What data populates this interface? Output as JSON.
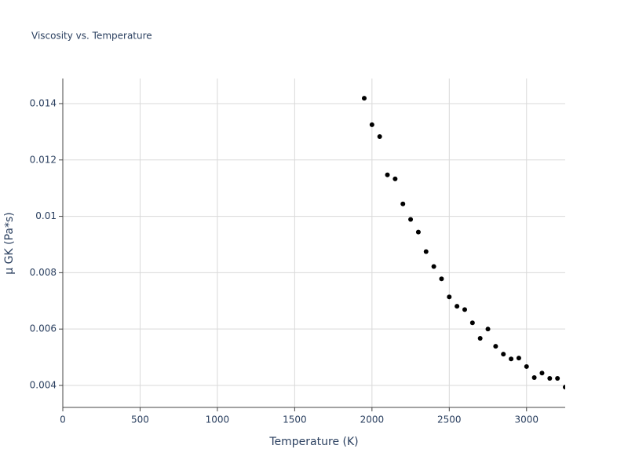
{
  "chart_data": {
    "type": "scatter",
    "title": "Viscosity vs. Temperature",
    "x_label": "Temperature (K)",
    "y_label": "μ GK (Pa*s)",
    "series": [
      {
        "name": "μ GK",
        "color": "#000000",
        "x": [
          1950,
          2000,
          2050,
          2100,
          2150,
          2200,
          2250,
          2300,
          2350,
          2400,
          2450,
          2500,
          2550,
          2600,
          2650,
          2700,
          2750,
          2800,
          2850,
          2900,
          2950,
          3000,
          3050,
          3100,
          3150,
          3200,
          3250
        ],
        "values": [
          0.01419,
          0.01325,
          0.01283,
          0.01147,
          0.01133,
          0.01044,
          0.00989,
          0.00944,
          0.00875,
          0.00822,
          0.00778,
          0.00714,
          0.00681,
          0.00669,
          0.00622,
          0.00567,
          0.006,
          0.00539,
          0.00511,
          0.00494,
          0.00497,
          0.00467,
          0.00428,
          0.00444,
          0.00425,
          0.00425,
          0.00394
        ]
      }
    ],
    "xlim": [
      0,
      3250
    ],
    "ylim": [
      0.00322,
      0.01489
    ],
    "xticks": [
      0,
      500,
      1000,
      1500,
      2000,
      2500,
      3000
    ],
    "yticks": [
      0.004,
      0.006,
      0.008,
      0.01,
      0.012,
      0.014
    ],
    "grid": true
  }
}
